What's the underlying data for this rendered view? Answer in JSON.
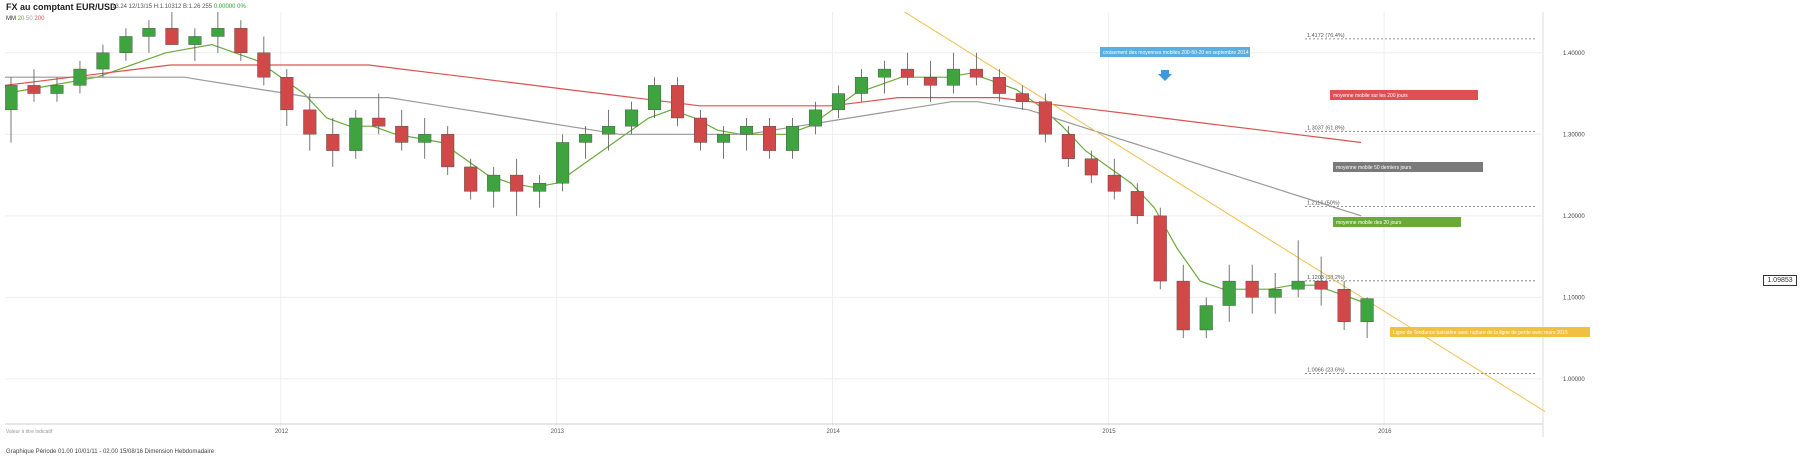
{
  "header": {
    "title": "FX au comptant EUR/USD",
    "stats": "13.24 12/13/15   H:1.10312   B:1.26 255",
    "change": "0.00000 0%"
  },
  "indicator_legend": {
    "mm_label": "MM",
    "periods": [
      "20",
      "50",
      "200"
    ],
    "colors": [
      "#6aaa3a",
      "#999999",
      "#e05050"
    ]
  },
  "current_price": "1.09853",
  "footer": "Graphique Période 01.00 10/01/11 - 02.00 15/08/16   Dimension Hebdomadaire",
  "watermark": "Valeur à titre indicatif",
  "chart_data": {
    "type": "candlestick",
    "xlabel": "",
    "ylabel": "",
    "ylim": [
      0.93,
      1.45
    ],
    "y_ticks": [
      {
        "value": 1.4,
        "label": "1.40000"
      },
      {
        "value": 1.3,
        "label": "1.30000"
      },
      {
        "value": 1.2,
        "label": "1.20000"
      },
      {
        "value": 1.1,
        "label": "1.10000"
      },
      {
        "value": 1.0,
        "label": "1.00000"
      }
    ],
    "x_ticks": [
      "2012",
      "2013",
      "2014",
      "2015",
      "2016"
    ],
    "grid": true,
    "fibonacci_levels": [
      {
        "value": 1.417,
        "label": "1.4172 (76.4%)"
      },
      {
        "value": 1.3037,
        "label": "1.3037 (61.8%)"
      },
      {
        "value": 1.2116,
        "label": "1.2116 (50%)"
      },
      {
        "value": 1.1203,
        "label": "1.1203 (38.2%)"
      },
      {
        "value": 1.0066,
        "label": "1.0066 (23.6%)"
      }
    ],
    "annotations": [
      {
        "text": "croisement des moyennes mobiles 200-50-20 en septembre 2014",
        "color": "#5aaee0"
      },
      {
        "text": "moyenne mobile sur les 200 jours",
        "color": "#e05050"
      },
      {
        "text": "moyenne mobile 50 derniers jours",
        "color": "#7a7a7a"
      },
      {
        "text": "moyenne mobile des 20 jours",
        "color": "#6aaa3a"
      },
      {
        "text": "Ligne de Tendance baissière avec rupture de la ligne de pente avec mars 2015",
        "color": "#f2c040"
      }
    ],
    "candles": [
      {
        "x": "2011-01",
        "o": 1.33,
        "h": 1.37,
        "l": 1.29,
        "c": 1.36
      },
      {
        "x": "2011-02",
        "o": 1.36,
        "h": 1.38,
        "l": 1.34,
        "c": 1.35
      },
      {
        "x": "2011-03",
        "o": 1.35,
        "h": 1.37,
        "l": 1.34,
        "c": 1.36
      },
      {
        "x": "2011-04",
        "o": 1.36,
        "h": 1.39,
        "l": 1.35,
        "c": 1.38
      },
      {
        "x": "2011-05",
        "o": 1.38,
        "h": 1.41,
        "l": 1.37,
        "c": 1.4
      },
      {
        "x": "2011-06",
        "o": 1.4,
        "h": 1.43,
        "l": 1.39,
        "c": 1.42
      },
      {
        "x": "2011-07",
        "o": 1.42,
        "h": 1.44,
        "l": 1.4,
        "c": 1.43
      },
      {
        "x": "2011-08",
        "o": 1.43,
        "h": 1.45,
        "l": 1.41,
        "c": 1.41
      },
      {
        "x": "2011-09",
        "o": 1.41,
        "h": 1.43,
        "l": 1.39,
        "c": 1.42
      },
      {
        "x": "2011-10",
        "o": 1.42,
        "h": 1.45,
        "l": 1.4,
        "c": 1.43
      },
      {
        "x": "2011-11",
        "o": 1.43,
        "h": 1.44,
        "l": 1.39,
        "c": 1.4
      },
      {
        "x": "2011-12",
        "o": 1.4,
        "h": 1.42,
        "l": 1.36,
        "c": 1.37
      },
      {
        "x": "2012-01",
        "o": 1.37,
        "h": 1.38,
        "l": 1.31,
        "c": 1.33
      },
      {
        "x": "2012-02",
        "o": 1.33,
        "h": 1.35,
        "l": 1.28,
        "c": 1.3
      },
      {
        "x": "2012-03",
        "o": 1.3,
        "h": 1.32,
        "l": 1.26,
        "c": 1.28
      },
      {
        "x": "2012-04",
        "o": 1.28,
        "h": 1.33,
        "l": 1.27,
        "c": 1.32
      },
      {
        "x": "2012-05",
        "o": 1.32,
        "h": 1.35,
        "l": 1.3,
        "c": 1.31
      },
      {
        "x": "2012-06",
        "o": 1.31,
        "h": 1.33,
        "l": 1.28,
        "c": 1.29
      },
      {
        "x": "2012-07",
        "o": 1.29,
        "h": 1.32,
        "l": 1.27,
        "c": 1.3
      },
      {
        "x": "2012-08",
        "o": 1.3,
        "h": 1.31,
        "l": 1.25,
        "c": 1.26
      },
      {
        "x": "2012-09",
        "o": 1.26,
        "h": 1.27,
        "l": 1.22,
        "c": 1.23
      },
      {
        "x": "2012-10",
        "o": 1.23,
        "h": 1.26,
        "l": 1.21,
        "c": 1.25
      },
      {
        "x": "2012-11",
        "o": 1.25,
        "h": 1.27,
        "l": 1.2,
        "c": 1.23
      },
      {
        "x": "2012-12",
        "o": 1.23,
        "h": 1.25,
        "l": 1.21,
        "c": 1.24
      },
      {
        "x": "2013-01",
        "o": 1.24,
        "h": 1.3,
        "l": 1.23,
        "c": 1.29
      },
      {
        "x": "2013-02",
        "o": 1.29,
        "h": 1.31,
        "l": 1.27,
        "c": 1.3
      },
      {
        "x": "2013-03",
        "o": 1.3,
        "h": 1.33,
        "l": 1.28,
        "c": 1.31
      },
      {
        "x": "2013-04",
        "o": 1.31,
        "h": 1.34,
        "l": 1.3,
        "c": 1.33
      },
      {
        "x": "2013-05",
        "o": 1.33,
        "h": 1.37,
        "l": 1.32,
        "c": 1.36
      },
      {
        "x": "2013-06",
        "o": 1.36,
        "h": 1.37,
        "l": 1.31,
        "c": 1.32
      },
      {
        "x": "2013-07",
        "o": 1.32,
        "h": 1.33,
        "l": 1.28,
        "c": 1.29
      },
      {
        "x": "2013-08",
        "o": 1.29,
        "h": 1.31,
        "l": 1.27,
        "c": 1.3
      },
      {
        "x": "2013-09",
        "o": 1.3,
        "h": 1.32,
        "l": 1.28,
        "c": 1.31
      },
      {
        "x": "2013-10",
        "o": 1.31,
        "h": 1.32,
        "l": 1.27,
        "c": 1.28
      },
      {
        "x": "2013-11",
        "o": 1.28,
        "h": 1.32,
        "l": 1.27,
        "c": 1.31
      },
      {
        "x": "2013-12",
        "o": 1.31,
        "h": 1.34,
        "l": 1.3,
        "c": 1.33
      },
      {
        "x": "2014-01",
        "o": 1.33,
        "h": 1.36,
        "l": 1.32,
        "c": 1.35
      },
      {
        "x": "2014-02",
        "o": 1.35,
        "h": 1.38,
        "l": 1.34,
        "c": 1.37
      },
      {
        "x": "2014-03",
        "o": 1.37,
        "h": 1.39,
        "l": 1.35,
        "c": 1.38
      },
      {
        "x": "2014-04",
        "o": 1.38,
        "h": 1.4,
        "l": 1.36,
        "c": 1.37
      },
      {
        "x": "2014-05",
        "o": 1.37,
        "h": 1.39,
        "l": 1.34,
        "c": 1.36
      },
      {
        "x": "2014-06",
        "o": 1.36,
        "h": 1.4,
        "l": 1.35,
        "c": 1.38
      },
      {
        "x": "2014-07",
        "o": 1.38,
        "h": 1.4,
        "l": 1.36,
        "c": 1.37
      },
      {
        "x": "2014-08",
        "o": 1.37,
        "h": 1.38,
        "l": 1.34,
        "c": 1.35
      },
      {
        "x": "2014-09",
        "o": 1.35,
        "h": 1.36,
        "l": 1.33,
        "c": 1.34
      },
      {
        "x": "2014-10",
        "o": 1.34,
        "h": 1.35,
        "l": 1.29,
        "c": 1.3
      },
      {
        "x": "2014-11",
        "o": 1.3,
        "h": 1.31,
        "l": 1.26,
        "c": 1.27
      },
      {
        "x": "2014-12",
        "o": 1.27,
        "h": 1.28,
        "l": 1.24,
        "c": 1.25
      },
      {
        "x": "2015-01",
        "o": 1.25,
        "h": 1.27,
        "l": 1.22,
        "c": 1.23
      },
      {
        "x": "2015-02",
        "o": 1.23,
        "h": 1.24,
        "l": 1.19,
        "c": 1.2
      },
      {
        "x": "2015-03",
        "o": 1.2,
        "h": 1.21,
        "l": 1.11,
        "c": 1.12
      },
      {
        "x": "2015-04",
        "o": 1.12,
        "h": 1.14,
        "l": 1.05,
        "c": 1.06
      },
      {
        "x": "2015-05",
        "o": 1.06,
        "h": 1.1,
        "l": 1.05,
        "c": 1.09
      },
      {
        "x": "2015-06",
        "o": 1.09,
        "h": 1.14,
        "l": 1.07,
        "c": 1.12
      },
      {
        "x": "2015-07",
        "o": 1.12,
        "h": 1.14,
        "l": 1.08,
        "c": 1.1
      },
      {
        "x": "2015-08",
        "o": 1.1,
        "h": 1.13,
        "l": 1.08,
        "c": 1.11
      },
      {
        "x": "2015-09",
        "o": 1.11,
        "h": 1.17,
        "l": 1.1,
        "c": 1.12
      },
      {
        "x": "2015-10",
        "o": 1.12,
        "h": 1.15,
        "l": 1.09,
        "c": 1.11
      },
      {
        "x": "2015-11",
        "o": 1.11,
        "h": 1.12,
        "l": 1.06,
        "c": 1.07
      },
      {
        "x": "2015-12",
        "o": 1.07,
        "h": 1.1,
        "l": 1.05,
        "c": 1.09853
      }
    ],
    "moving_averages": [
      {
        "period": "20",
        "color": "#6aaa3a",
        "values": [
          1.35,
          1.355,
          1.36,
          1.365,
          1.37,
          1.38,
          1.39,
          1.4,
          1.405,
          1.41,
          1.4,
          1.39,
          1.37,
          1.35,
          1.32,
          1.31,
          1.31,
          1.3,
          1.295,
          1.29,
          1.27,
          1.25,
          1.24,
          1.235,
          1.24,
          1.26,
          1.28,
          1.3,
          1.32,
          1.33,
          1.32,
          1.305,
          1.3,
          1.3,
          1.3,
          1.31,
          1.33,
          1.35,
          1.36,
          1.37,
          1.37,
          1.37,
          1.375,
          1.365,
          1.355,
          1.335,
          1.31,
          1.28,
          1.26,
          1.24,
          1.21,
          1.16,
          1.12,
          1.11,
          1.11,
          1.11,
          1.115,
          1.115,
          1.105,
          1.095
        ]
      },
      {
        "period": "50",
        "color": "#999999",
        "values": [
          1.37,
          1.37,
          1.37,
          1.37,
          1.37,
          1.37,
          1.37,
          1.37,
          1.365,
          1.36,
          1.355,
          1.35,
          1.345,
          1.345,
          1.345,
          1.345,
          1.34,
          1.335,
          1.33,
          1.325,
          1.32,
          1.315,
          1.31,
          1.305,
          1.3,
          1.3,
          1.3,
          1.3,
          1.3,
          1.3,
          1.305,
          1.31,
          1.315,
          1.32,
          1.325,
          1.33,
          1.335,
          1.34,
          1.34,
          1.335,
          1.33,
          1.32,
          1.31,
          1.3,
          1.29,
          1.28,
          1.27,
          1.26,
          1.25,
          1.24,
          1.23,
          1.22,
          1.21,
          1.2
        ]
      },
      {
        "period": "200",
        "color": "#e05050",
        "values": [
          1.36,
          1.365,
          1.37,
          1.375,
          1.38,
          1.385,
          1.385,
          1.385,
          1.385,
          1.385,
          1.385,
          1.385,
          1.38,
          1.375,
          1.37,
          1.365,
          1.36,
          1.355,
          1.35,
          1.345,
          1.34,
          1.335,
          1.335,
          1.335,
          1.335,
          1.335,
          1.34,
          1.345,
          1.345,
          1.345,
          1.345,
          1.34,
          1.335,
          1.33,
          1.325,
          1.32,
          1.315,
          1.31,
          1.305,
          1.3,
          1.295,
          1.29
        ]
      }
    ],
    "trendline": {
      "color": "#f0c050",
      "from": {
        "x": "2014-03",
        "y": 1.47
      },
      "to": {
        "x": "2016-08",
        "y": 0.96
      }
    }
  }
}
